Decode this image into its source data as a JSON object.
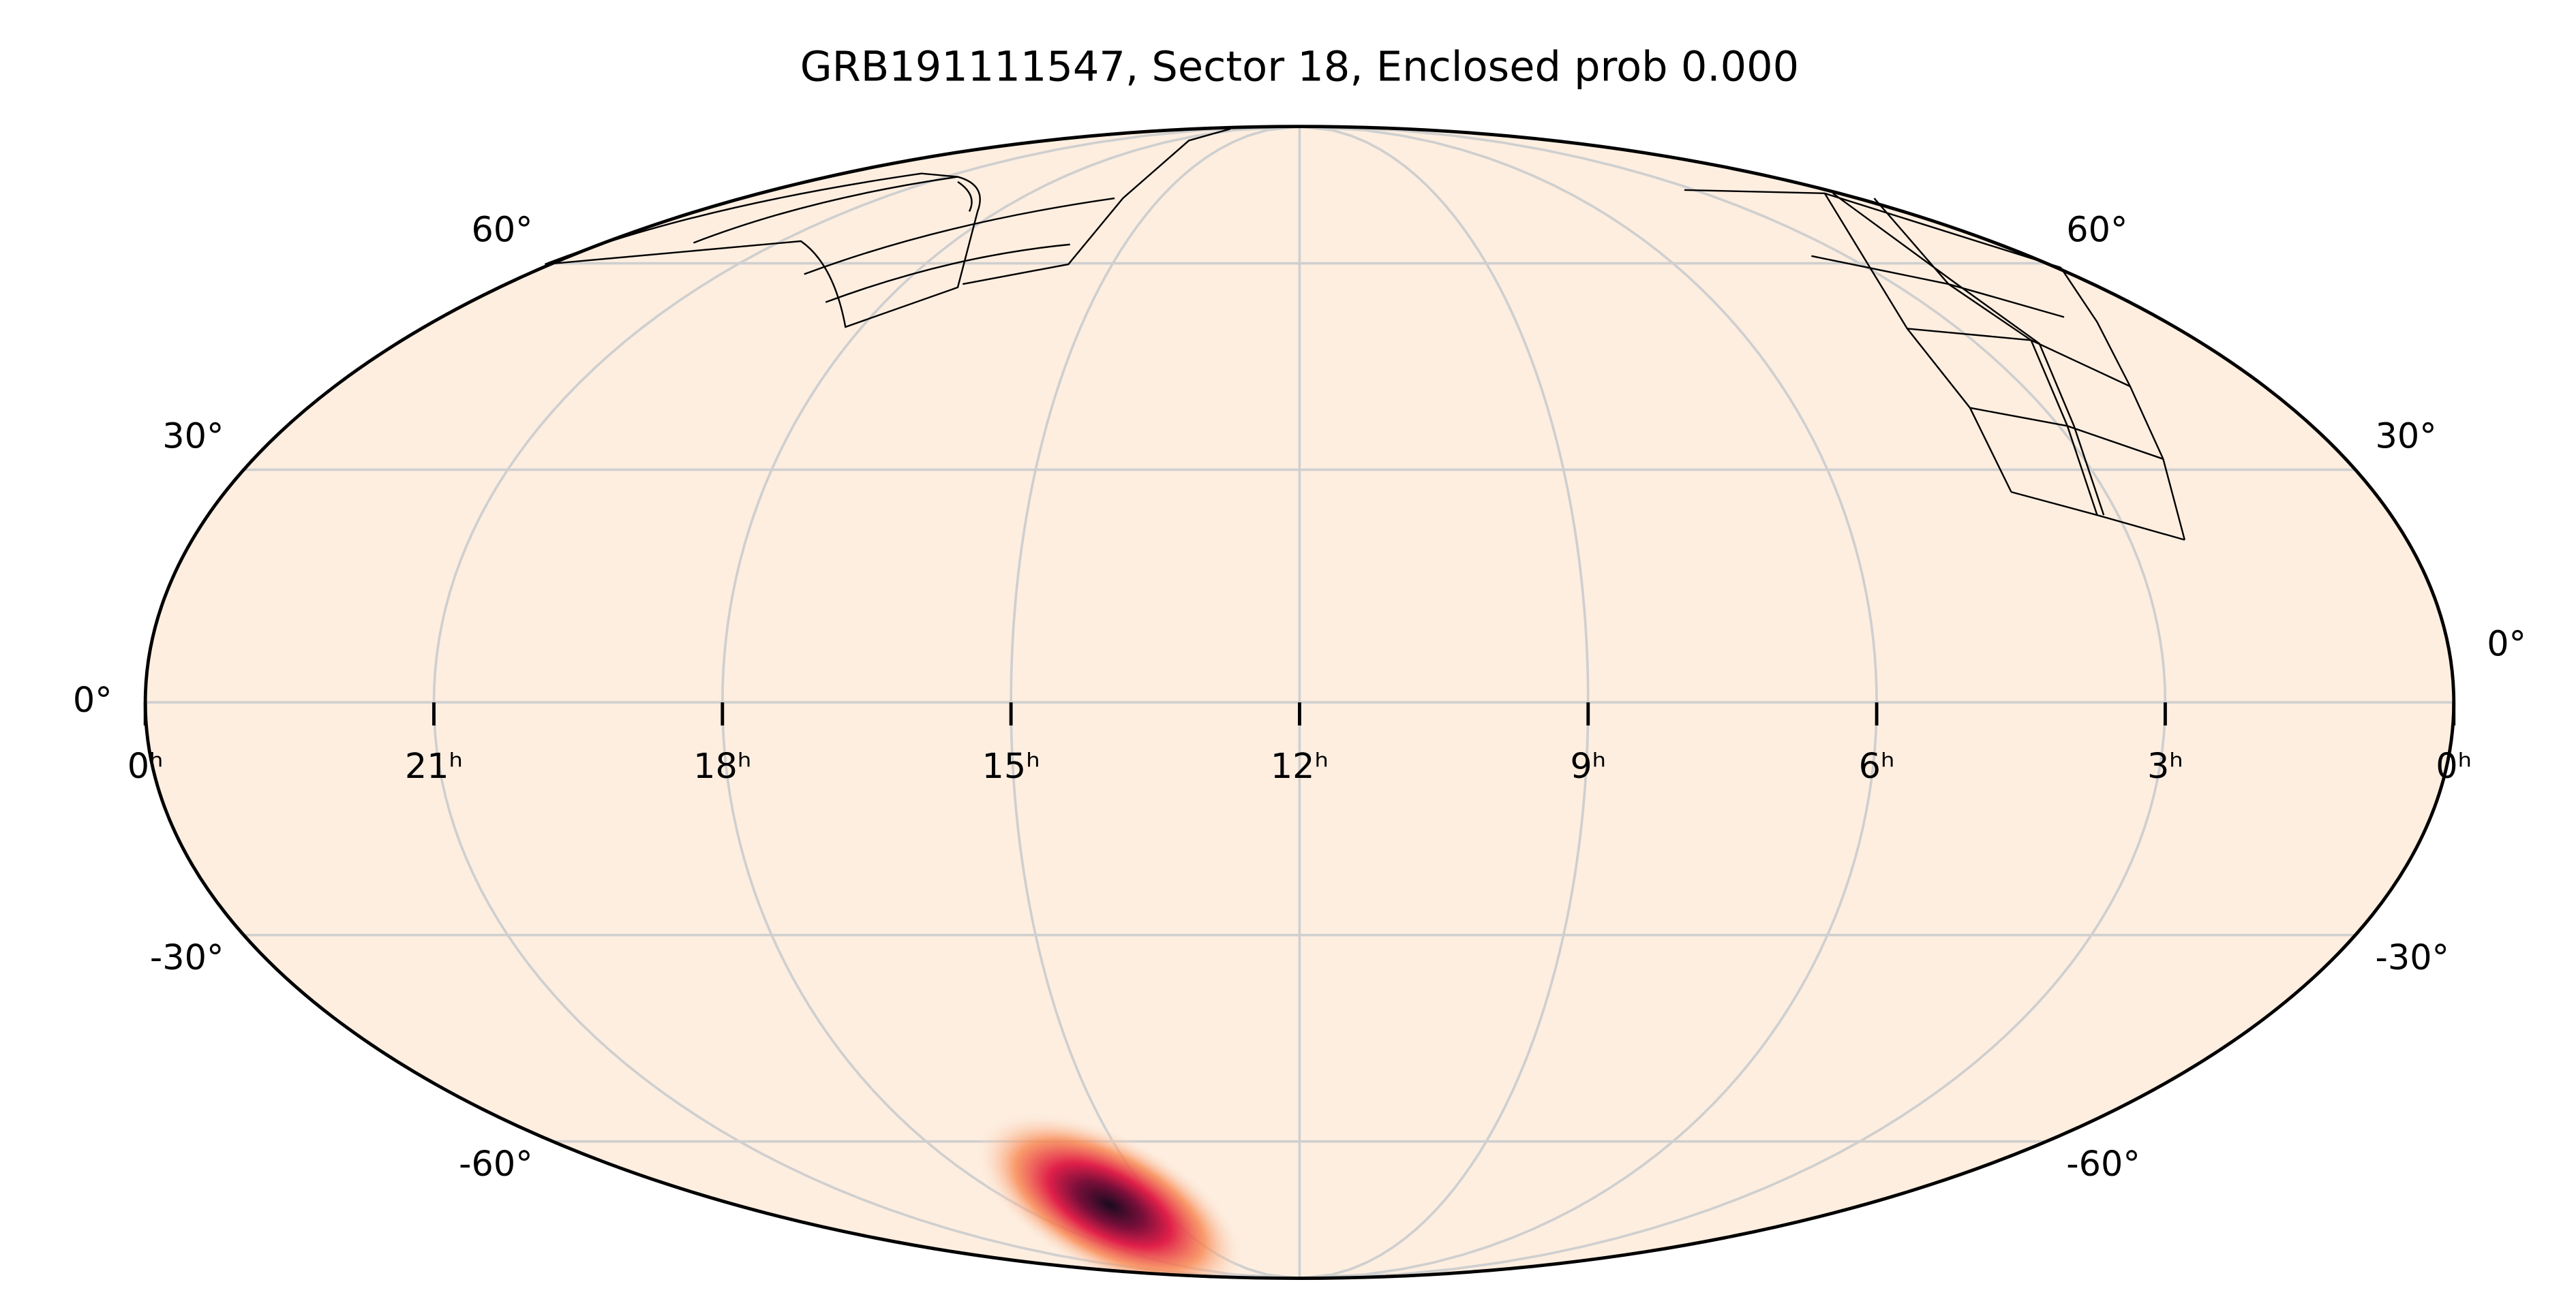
{
  "chart_data": {
    "type": "skymap",
    "projection": "mollweide",
    "title": "GRB191111547, Sector 18, Enclosed prob 0.000",
    "xlim": [
      24,
      0
    ],
    "xticks": [
      {
        "value": 24,
        "label": "0ʰ"
      },
      {
        "value": 21,
        "label": "21ʰ"
      },
      {
        "value": 18,
        "label": "18ʰ"
      },
      {
        "value": 15,
        "label": "15ʰ"
      },
      {
        "value": 12,
        "label": "12ʰ"
      },
      {
        "value": 9,
        "label": "9ʰ"
      },
      {
        "value": 6,
        "label": "6ʰ"
      },
      {
        "value": 3,
        "label": "3ʰ"
      },
      {
        "value": 0,
        "label": "0ʰ"
      }
    ],
    "ylim": [
      -90,
      90
    ],
    "yticks": [
      {
        "value": -60,
        "label": "-60°"
      },
      {
        "value": -30,
        "label": "-30°"
      },
      {
        "value": 0,
        "label": "0°"
      },
      {
        "value": 30,
        "label": "30°"
      },
      {
        "value": 60,
        "label": "60°"
      }
    ],
    "grid": true
  }
}
